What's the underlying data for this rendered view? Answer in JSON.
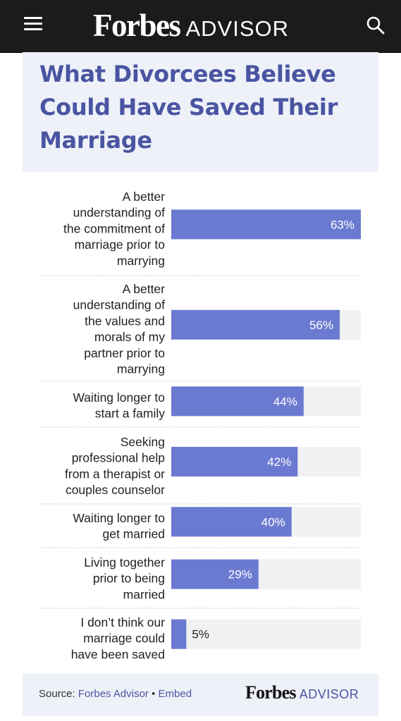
{
  "header": {
    "brand": "Forbes",
    "brand_suffix": "ADVISOR",
    "menu_icon": "hamburger-menu-icon",
    "search_icon": "search-icon",
    "background": "#1b1b1b"
  },
  "footer": {
    "source_prefix": "Source:",
    "source_name": "Forbes Advisor",
    "separator": "•",
    "embed_label": "Embed",
    "brand": "Forbes",
    "brand_suffix": "ADVISOR"
  },
  "colors": {
    "bar": "#6b7ad1",
    "track": "#f1f1f3",
    "title": "#4a55a2",
    "panel": "#eef1f8"
  },
  "chart_data": {
    "type": "bar",
    "orientation": "horizontal",
    "title": "What Divorcees Believe Could Have Saved Their Marriage",
    "categories": [
      "A better understanding of the commitment of marriage prior to marrying",
      "A better understanding of the values and morals of my partner prior to marrying",
      "Waiting longer to start a family",
      "Seeking professional help from a therapist or couples counselor",
      "Waiting longer to get married",
      "Living together prior to being married",
      "I don’t think our marriage could have been saved"
    ],
    "category_lines": [
      [
        "A better",
        "understanding of",
        "the commitment of",
        "marriage prior to",
        "marrying"
      ],
      [
        "A better",
        "understanding of",
        "the values and",
        "morals of my",
        "partner prior to",
        "marrying"
      ],
      [
        "Waiting longer to",
        "start a family"
      ],
      [
        "Seeking",
        "professional help",
        "from a therapist or",
        "couples counselor"
      ],
      [
        "Waiting longer to",
        "get married"
      ],
      [
        "Living together",
        "prior to being",
        "married"
      ],
      [
        "I don’t think our",
        "marriage could",
        "have been saved"
      ]
    ],
    "values": [
      63,
      56,
      44,
      42,
      40,
      29,
      5
    ],
    "data_labels": [
      "63%",
      "56%",
      "44%",
      "42%",
      "40%",
      "29%",
      "5%"
    ],
    "xlim": [
      0,
      63
    ],
    "unit": "%",
    "grid": false,
    "legend": "none",
    "xlabel": "",
    "ylabel": ""
  }
}
